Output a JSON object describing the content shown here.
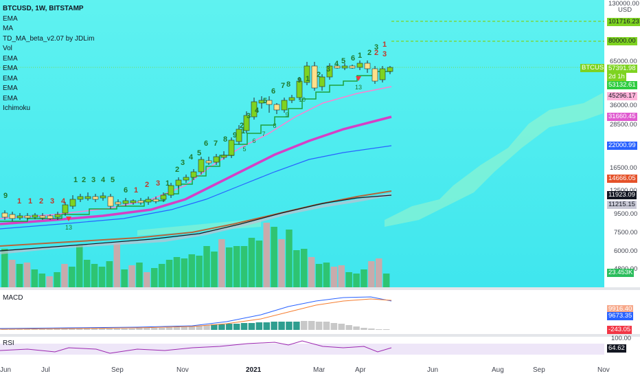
{
  "header": {
    "symbol_title": "BTCUSD, 1W, BITSTAMP",
    "indicators": [
      "EMA",
      "MA",
      "TD_MA_beta_v2.07 by JDLim",
      "Vol",
      "EMA",
      "EMA",
      "EMA",
      "EMA",
      "EMA",
      "Ichimoku"
    ]
  },
  "price_axis": {
    "currency_top": "130000.00",
    "currency": "USD",
    "ticks": [
      "65000.00",
      "36000.00",
      "28500.00",
      "16500.00",
      "12500.00",
      "9500.00",
      "7500.00",
      "6000.00",
      "4800.00"
    ],
    "right_tags": [
      {
        "label": "101716.23",
        "bg": "#7ed321",
        "fg": "#131722"
      },
      {
        "label": "80000.00",
        "bg": "#7ed321",
        "fg": "#131722"
      },
      {
        "label": "57391.98",
        "bg": "#7ed321",
        "fg": "#ffffff"
      },
      {
        "label": "2d 1h",
        "bg": "#7ed321",
        "fg": "#ffffff"
      },
      {
        "label": "53132.61",
        "bg": "#2ecc40",
        "fg": "#ffffff"
      },
      {
        "label": "45296.17",
        "bg": "#ffb3d9",
        "fg": "#131722"
      },
      {
        "label": "31660.45",
        "bg": "#e05bd0",
        "fg": "#ffffff"
      },
      {
        "label": "22000.99",
        "bg": "#2962ff",
        "fg": "#ffffff"
      },
      {
        "label": "14666.05",
        "bg": "#e5522a",
        "fg": "#ffffff"
      },
      {
        "label": "11923.09",
        "bg": "#131722",
        "fg": "#ffffff"
      },
      {
        "label": "11215.15",
        "bg": "#c9c9d6",
        "fg": "#131722"
      },
      {
        "label": "23.453K",
        "bg": "#2bbd5c",
        "fg": "#ffffff"
      }
    ],
    "symbol_tag": "BTCUSD"
  },
  "td_counts": [
    {
      "label": "9",
      "color": "#1f7a2e"
    },
    {
      "label": "1",
      "color": "#c0392b"
    },
    {
      "label": "1",
      "color": "#c0392b"
    },
    {
      "label": "2",
      "color": "#c0392b"
    },
    {
      "label": "3",
      "color": "#c0392b"
    },
    {
      "label": "4",
      "color": "#c0392b"
    },
    {
      "label": "1",
      "color": "#1f7a2e"
    },
    {
      "label": "2",
      "color": "#1f7a2e"
    },
    {
      "label": "3",
      "color": "#1f7a2e"
    },
    {
      "label": "4",
      "color": "#1f7a2e"
    },
    {
      "label": "5",
      "color": "#1f7a2e"
    },
    {
      "label": "6",
      "color": "#1f7a2e"
    },
    {
      "label": "1",
      "color": "#c0392b"
    },
    {
      "label": "2",
      "color": "#c0392b"
    },
    {
      "label": "3",
      "color": "#c0392b"
    },
    {
      "label": "1",
      "color": "#1f7a2e"
    },
    {
      "label": "2",
      "color": "#1f7a2e"
    },
    {
      "label": "3",
      "color": "#1f7a2e"
    },
    {
      "label": "4",
      "color": "#1f7a2e"
    },
    {
      "label": "5",
      "color": "#1f7a2e"
    },
    {
      "label": "6",
      "color": "#1f7a2e"
    },
    {
      "label": "7",
      "color": "#1f7a2e"
    },
    {
      "label": "8",
      "color": "#1f7a2e"
    },
    {
      "label": "9",
      "color": "#1f7a2e"
    },
    {
      "label": "1",
      "color": "#1f7a2e"
    },
    {
      "label": "2",
      "color": "#1f7a2e"
    },
    {
      "label": "3",
      "color": "#1f7a2e"
    },
    {
      "label": "4",
      "color": "#1f7a2e"
    },
    {
      "label": "5",
      "color": "#1f7a2e"
    },
    {
      "label": "6",
      "color": "#1f7a2e"
    },
    {
      "label": "7",
      "color": "#1f7a2e"
    },
    {
      "label": "8",
      "color": "#1f7a2e"
    },
    {
      "label": "9",
      "color": "#1f7a2e"
    },
    {
      "label": "1",
      "color": "#1f7a2e"
    },
    {
      "label": "2",
      "color": "#1f7a2e"
    },
    {
      "label": "3",
      "color": "#1f7a2e"
    },
    {
      "label": "4",
      "color": "#1f7a2e"
    },
    {
      "label": "5",
      "color": "#1f7a2e"
    },
    {
      "label": "6",
      "color": "#1f7a2e"
    },
    {
      "label": "1",
      "color": "#1f7a2e"
    },
    {
      "label": "2",
      "color": "#1f7a2e"
    },
    {
      "label": "3",
      "color": "#1f7a2e"
    },
    {
      "label": "1",
      "color": "#c0392b"
    },
    {
      "label": "2",
      "color": "#c0392b"
    },
    {
      "label": "3",
      "color": "#c0392b"
    }
  ],
  "td_sub_counts": [
    "13",
    "13",
    "10",
    "9",
    "8",
    "7",
    "6",
    "5"
  ],
  "macd": {
    "label": "MACD",
    "tags": [
      {
        "label": "9916.40",
        "bg": "#f7a98b",
        "fg": "#ffffff"
      },
      {
        "label": "9673.35",
        "bg": "#2962ff",
        "fg": "#ffffff"
      },
      {
        "label": "-243.05",
        "bg": "#f23645",
        "fg": "#ffffff"
      }
    ]
  },
  "rsi": {
    "label": "RSI",
    "top_tick": "100.00",
    "tag": {
      "label": "64.62",
      "bg": "#131722",
      "fg": "#ffffff"
    }
  },
  "time_axis": [
    "Jun",
    "Jul",
    "Sep",
    "Nov",
    "2021",
    "Mar",
    "Apr",
    "Jun",
    "Aug",
    "Sep",
    "Nov"
  ],
  "colors": {
    "background": "#4feaf0",
    "up_candle": "#7ed321",
    "down_candle": "#ffe08a",
    "ema_pink": "#ff7fd0",
    "ema_magenta": "#d63fc6",
    "ema_blue": "#2962ff",
    "ema_orange": "#b5653a",
    "ema_black": "#131722",
    "ema_gray": "#c0c0d0",
    "td_step": "#1f9f3a"
  }
}
